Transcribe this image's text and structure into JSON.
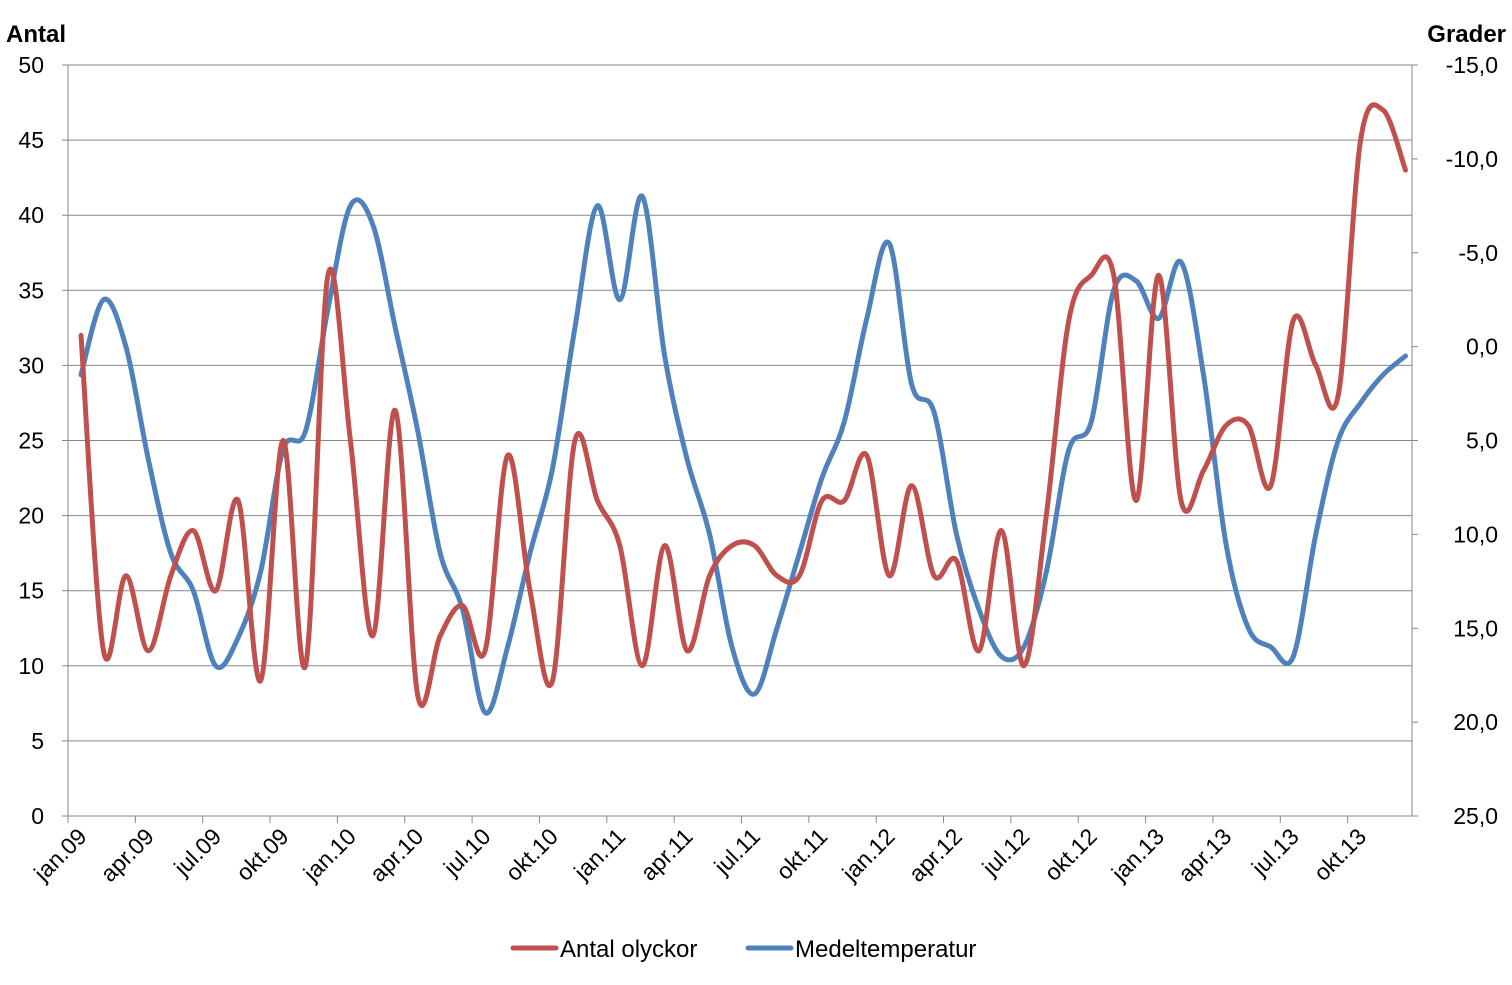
{
  "chart_data": {
    "type": "line",
    "title": "",
    "x": [
      "jan.09",
      "feb.09",
      "mar.09",
      "apr.09",
      "maj.09",
      "jun.09",
      "jul.09",
      "aug.09",
      "sep.09",
      "okt.09",
      "nov.09",
      "dec.09",
      "jan.10",
      "feb.10",
      "mar.10",
      "apr.10",
      "maj.10",
      "jun.10",
      "jul.10",
      "aug.10",
      "sep.10",
      "okt.10",
      "nov.10",
      "dec.10",
      "jan.11",
      "feb.11",
      "mar.11",
      "apr.11",
      "maj.11",
      "jun.11",
      "jul.11",
      "aug.11",
      "sep.11",
      "okt.11",
      "nov.11",
      "dec.11",
      "jan.12",
      "feb.12",
      "mar.12",
      "apr.12",
      "maj.12",
      "jun.12",
      "jul.12",
      "aug.12",
      "sep.12",
      "okt.12",
      "nov.12",
      "dec.12",
      "jan.13",
      "feb.13",
      "mar.13",
      "apr.13",
      "maj.13",
      "jun.13",
      "jul.13",
      "aug.13",
      "sep.13",
      "okt.13",
      "nov.13",
      "dec.13"
    ],
    "x_tick_labels": [
      "jan.09",
      "apr.09",
      "jul.09",
      "okt.09",
      "jan.10",
      "apr.10",
      "jul.10",
      "okt.10",
      "jan.11",
      "apr.11",
      "jul.11",
      "okt.11",
      "jan.12",
      "apr.12",
      "jul.12",
      "okt.12",
      "jan.13",
      "apr.13",
      "jul.13",
      "okt.13"
    ],
    "y_left": {
      "label": "Antal",
      "range": [
        0,
        50
      ],
      "ticks": [
        "0",
        "5",
        "10",
        "15",
        "20",
        "25",
        "30",
        "35",
        "40",
        "45",
        "50"
      ]
    },
    "y_right": {
      "label": "Grader",
      "range": [
        25,
        -15
      ],
      "reversed": true,
      "ticks": [
        "25,0",
        "20,0",
        "15,0",
        "10,0",
        "5,0",
        "0,0",
        "-5,0",
        "-10,0",
        "-15,0"
      ]
    },
    "grid": true,
    "legend_position": "bottom",
    "series": [
      {
        "name": "Antal olyckor",
        "axis": "left",
        "color": "#C0504D",
        "values": [
          32,
          11,
          16,
          11,
          16,
          19,
          15,
          21,
          9,
          25,
          10,
          36,
          25,
          12,
          27,
          8,
          12,
          14,
          11,
          24,
          15,
          9,
          25,
          21,
          18,
          10,
          18,
          11,
          16,
          18,
          18,
          16,
          16,
          21,
          21,
          24,
          16,
          22,
          16,
          17,
          11,
          19,
          10,
          20,
          33,
          36,
          36,
          21,
          36,
          21,
          23,
          26,
          26,
          22,
          33,
          30,
          28,
          45,
          47,
          43
        ]
      },
      {
        "name": "Medeltemperatur",
        "axis": "right",
        "color": "#4F81BD",
        "values": [
          1.5,
          -2.5,
          0,
          6,
          11,
          13,
          17,
          15.5,
          12,
          5.5,
          4.5,
          -2,
          -7.5,
          -6.5,
          -1,
          4.5,
          11,
          14,
          19.5,
          16,
          11,
          6.5,
          -1,
          -7.5,
          -2.5,
          -8,
          0.5,
          6,
          10,
          16,
          18.5,
          15,
          11,
          7,
          4,
          -1.5,
          -5.5,
          2,
          3.5,
          10,
          14,
          16.5,
          16,
          12,
          5.5,
          4,
          -3,
          -3.5,
          -1.5,
          -4.5,
          1.5,
          10.5,
          15,
          16,
          16.5,
          10,
          5,
          3,
          1.5,
          0.5
        ]
      }
    ]
  }
}
